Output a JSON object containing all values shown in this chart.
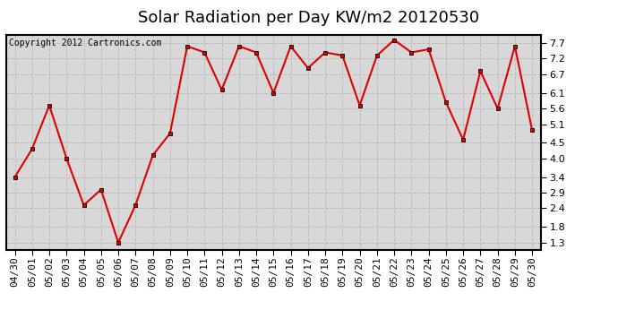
{
  "title": "Solar Radiation per Day KW/m2 20120530",
  "copyright_text": "Copyright 2012 Cartronics.com",
  "dates": [
    "04/30",
    "05/01",
    "05/02",
    "05/03",
    "05/04",
    "05/05",
    "05/06",
    "05/07",
    "05/08",
    "05/09",
    "05/10",
    "05/11",
    "05/12",
    "05/13",
    "05/14",
    "05/15",
    "05/16",
    "05/17",
    "05/18",
    "05/19",
    "05/20",
    "05/21",
    "05/22",
    "05/23",
    "05/24",
    "05/25",
    "05/26",
    "05/27",
    "05/28",
    "05/29",
    "05/30"
  ],
  "values": [
    3.4,
    4.3,
    5.7,
    4.0,
    2.5,
    3.0,
    1.3,
    2.5,
    4.1,
    4.8,
    7.6,
    7.4,
    6.2,
    7.6,
    7.4,
    6.1,
    7.6,
    6.9,
    7.4,
    7.3,
    5.7,
    7.3,
    7.8,
    7.4,
    7.5,
    5.8,
    4.6,
    6.8,
    5.6,
    7.6,
    4.9
  ],
  "line_color": "#dd0000",
  "bg_color": "#ffffff",
  "plot_bg_color": "#d8d8d8",
  "grid_color": "#bbbbbb",
  "yticks": [
    1.3,
    1.8,
    2.4,
    2.9,
    3.4,
    4.0,
    4.5,
    5.1,
    5.6,
    6.1,
    6.7,
    7.2,
    7.7
  ],
  "ylim_min": 1.05,
  "ylim_max": 7.95,
  "title_fontsize": 13,
  "copyright_fontsize": 7,
  "tick_fontsize": 8
}
